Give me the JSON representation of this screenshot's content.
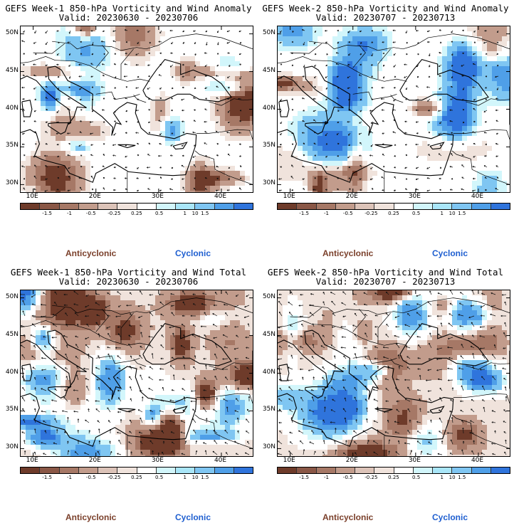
{
  "panels": [
    {
      "title": "GEFS Week-1 850-hPa Vorticity and Wind Anomaly",
      "valid": "Valid: 20230630 - 20230706",
      "kind": "anomaly"
    },
    {
      "title": "GEFS Week-2 850-hPa Vorticity and Wind Anomaly",
      "valid": "Valid: 20230707 - 20230713",
      "kind": "anomaly"
    },
    {
      "title": "GEFS Week-1 850-hPa Vorticity and Wind Total",
      "valid": "Valid: 20230630 - 20230706",
      "kind": "total"
    },
    {
      "title": "GEFS Week-2 850-hPa Vorticity and Wind Total",
      "valid": "Valid: 20230707 - 20230713",
      "kind": "total"
    }
  ],
  "lat_labels": [
    "50N",
    "45N",
    "40N",
    "35N",
    "30N"
  ],
  "lon_labels": [
    "10E",
    "20E",
    "30E",
    "40E"
  ],
  "colorbar": {
    "labels": [
      "-1.5",
      "-1",
      "-0.5",
      "-0.25",
      "0.25",
      "0.5",
      "1",
      "1.5"
    ],
    "scale_label": "10",
    "colors": [
      "#6e3b2a",
      "#8a5746",
      "#a67866",
      "#c29c8c",
      "#dcc3b8",
      "#f0e3dc",
      "#ffffff",
      "#d2f6fb",
      "#a9e6f8",
      "#7fc6f2",
      "#4f9fe8",
      "#2f74dc"
    ]
  },
  "legend": {
    "anticyclonic": "Anticyclonic",
    "cyclonic": "Cyclonic"
  },
  "chart_data": {
    "type": "heatmap",
    "x_range": [
      8,
      45
    ],
    "y_range": [
      29,
      51
    ],
    "xlabel": "",
    "ylabel": ""
  }
}
